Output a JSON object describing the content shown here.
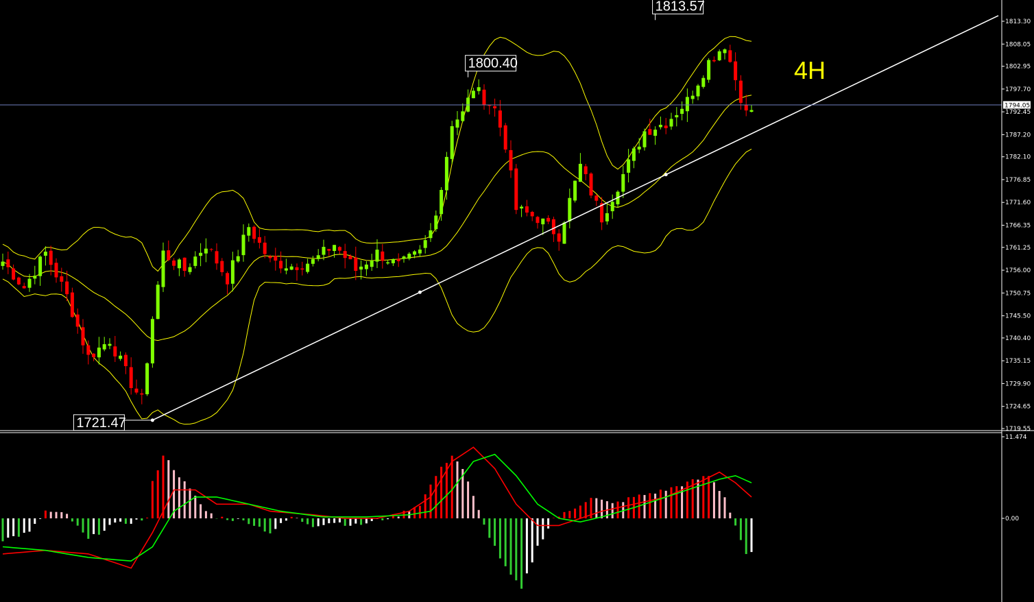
{
  "chart_data": [
    {
      "type": "candlestick",
      "timeframe_label": "4H",
      "ylim": [
        1719.55,
        1813.3
      ],
      "y_ticks": [
        "1813.30",
        "1808.05",
        "1802.95",
        "1797.70",
        "1792.45",
        "1787.20",
        "1782.10",
        "1776.85",
        "1771.60",
        "1766.35",
        "1761.25",
        "1756.00",
        "1750.75",
        "1745.50",
        "1740.40",
        "1735.15",
        "1729.90",
        "1724.65",
        "1719.55"
      ],
      "current_price": "1794.05",
      "annotations": [
        {
          "text": "1721.47",
          "value": 1721.47,
          "bar": 28
        },
        {
          "text": "1800.40",
          "value": 1800.4,
          "bar": 87
        },
        {
          "text": "1813.57",
          "value": 1813.57,
          "bar": 122
        }
      ],
      "trendline": {
        "from": {
          "bar": 28,
          "price": 1721.47
        },
        "to": {
          "bar": 124,
          "price": 1778.0
        }
      },
      "colors": {
        "up": "#7fff00",
        "down": "#ff0000",
        "bands": "#ffff00",
        "trendline": "#ffffff",
        "current_price_line": "#6f7fbf"
      },
      "close_keypoints": [
        [
          0,
          1758
        ],
        [
          4,
          1752
        ],
        [
          8,
          1760
        ],
        [
          12,
          1750
        ],
        [
          16,
          1736
        ],
        [
          20,
          1740
        ],
        [
          24,
          1730
        ],
        [
          26,
          1726
        ],
        [
          28,
          1745
        ],
        [
          30,
          1760
        ],
        [
          34,
          1756
        ],
        [
          38,
          1762
        ],
        [
          42,
          1754
        ],
        [
          46,
          1766
        ],
        [
          50,
          1758
        ],
        [
          54,
          1757
        ],
        [
          58,
          1758
        ],
        [
          62,
          1762
        ],
        [
          66,
          1756
        ],
        [
          70,
          1760
        ],
        [
          74,
          1757
        ],
        [
          78,
          1760
        ],
        [
          80,
          1765
        ],
        [
          82,
          1775
        ],
        [
          84,
          1790
        ],
        [
          86,
          1792
        ],
        [
          88,
          1798
        ],
        [
          92,
          1793
        ],
        [
          94,
          1785
        ],
        [
          96,
          1770
        ],
        [
          100,
          1768
        ],
        [
          104,
          1764
        ],
        [
          108,
          1780
        ],
        [
          112,
          1768
        ],
        [
          116,
          1778
        ],
        [
          120,
          1788
        ],
        [
          124,
          1790
        ],
        [
          128,
          1795
        ],
        [
          132,
          1804
        ],
        [
          135,
          1808
        ],
        [
          137,
          1800
        ],
        [
          139,
          1792
        ],
        [
          140,
          1793
        ]
      ]
    },
    {
      "type": "macd",
      "ylim": [
        -11.474,
        11.474
      ],
      "y_ticks": [
        "11.474",
        "0.00"
      ],
      "colors": {
        "hist_up_rising": "#ff0000",
        "hist_up_falling": "#ffc0cb",
        "hist_down_falling": "#32cd32",
        "hist_down_rising": "#ffffff",
        "macd_line": "#ff0000",
        "signal_line": "#00ff00"
      },
      "histogram_keypoints": [
        [
          0,
          -3
        ],
        [
          5,
          -2
        ],
        [
          8,
          1
        ],
        [
          12,
          0.5
        ],
        [
          16,
          -3
        ],
        [
          20,
          -1
        ],
        [
          24,
          -0.5
        ],
        [
          27,
          0
        ],
        [
          28,
          5
        ],
        [
          30,
          9
        ],
        [
          32,
          7
        ],
        [
          34,
          5
        ],
        [
          36,
          3
        ],
        [
          38,
          1
        ],
        [
          40,
          0.2
        ],
        [
          46,
          -0.5
        ],
        [
          50,
          -2
        ],
        [
          54,
          0.2
        ],
        [
          58,
          -1
        ],
        [
          62,
          -0.5
        ],
        [
          66,
          -1
        ],
        [
          70,
          -0.3
        ],
        [
          74,
          0.5
        ],
        [
          78,
          2
        ],
        [
          81,
          6
        ],
        [
          84,
          9
        ],
        [
          86,
          7
        ],
        [
          88,
          3
        ],
        [
          90,
          -1
        ],
        [
          94,
          -7
        ],
        [
          97,
          -10
        ],
        [
          100,
          -4
        ],
        [
          103,
          0
        ],
        [
          106,
          1
        ],
        [
          110,
          3
        ],
        [
          114,
          2
        ],
        [
          118,
          3
        ],
        [
          124,
          4
        ],
        [
          128,
          5
        ],
        [
          132,
          6
        ],
        [
          135,
          3
        ],
        [
          137,
          -1
        ],
        [
          139,
          -5
        ],
        [
          140,
          -5
        ]
      ],
      "macd_keypoints": [
        [
          0,
          -5
        ],
        [
          8,
          -4.5
        ],
        [
          16,
          -5
        ],
        [
          24,
          -7
        ],
        [
          28,
          -2
        ],
        [
          32,
          4
        ],
        [
          36,
          4
        ],
        [
          40,
          2
        ],
        [
          46,
          2
        ],
        [
          50,
          1
        ],
        [
          58,
          0.5
        ],
        [
          64,
          0
        ],
        [
          70,
          0
        ],
        [
          76,
          1
        ],
        [
          80,
          3
        ],
        [
          84,
          8
        ],
        [
          88,
          10
        ],
        [
          92,
          7
        ],
        [
          96,
          2
        ],
        [
          100,
          -1
        ],
        [
          104,
          -1
        ],
        [
          108,
          0
        ],
        [
          112,
          1
        ],
        [
          118,
          2
        ],
        [
          124,
          3
        ],
        [
          130,
          5
        ],
        [
          134,
          6.5
        ],
        [
          137,
          5
        ],
        [
          140,
          3
        ]
      ],
      "signal_keypoints": [
        [
          0,
          -4
        ],
        [
          8,
          -4.5
        ],
        [
          16,
          -5.5
        ],
        [
          24,
          -6
        ],
        [
          28,
          -4
        ],
        [
          32,
          1
        ],
        [
          36,
          3
        ],
        [
          40,
          3
        ],
        [
          46,
          2
        ],
        [
          52,
          1
        ],
        [
          60,
          0.2
        ],
        [
          68,
          0.2
        ],
        [
          76,
          0.5
        ],
        [
          80,
          1
        ],
        [
          84,
          4
        ],
        [
          88,
          8
        ],
        [
          92,
          9
        ],
        [
          96,
          6
        ],
        [
          100,
          2
        ],
        [
          104,
          0
        ],
        [
          108,
          -0.5
        ],
        [
          112,
          0.2
        ],
        [
          118,
          1.5
        ],
        [
          124,
          3
        ],
        [
          130,
          4.5
        ],
        [
          134,
          5.5
        ],
        [
          137,
          6
        ],
        [
          140,
          5
        ]
      ]
    }
  ]
}
